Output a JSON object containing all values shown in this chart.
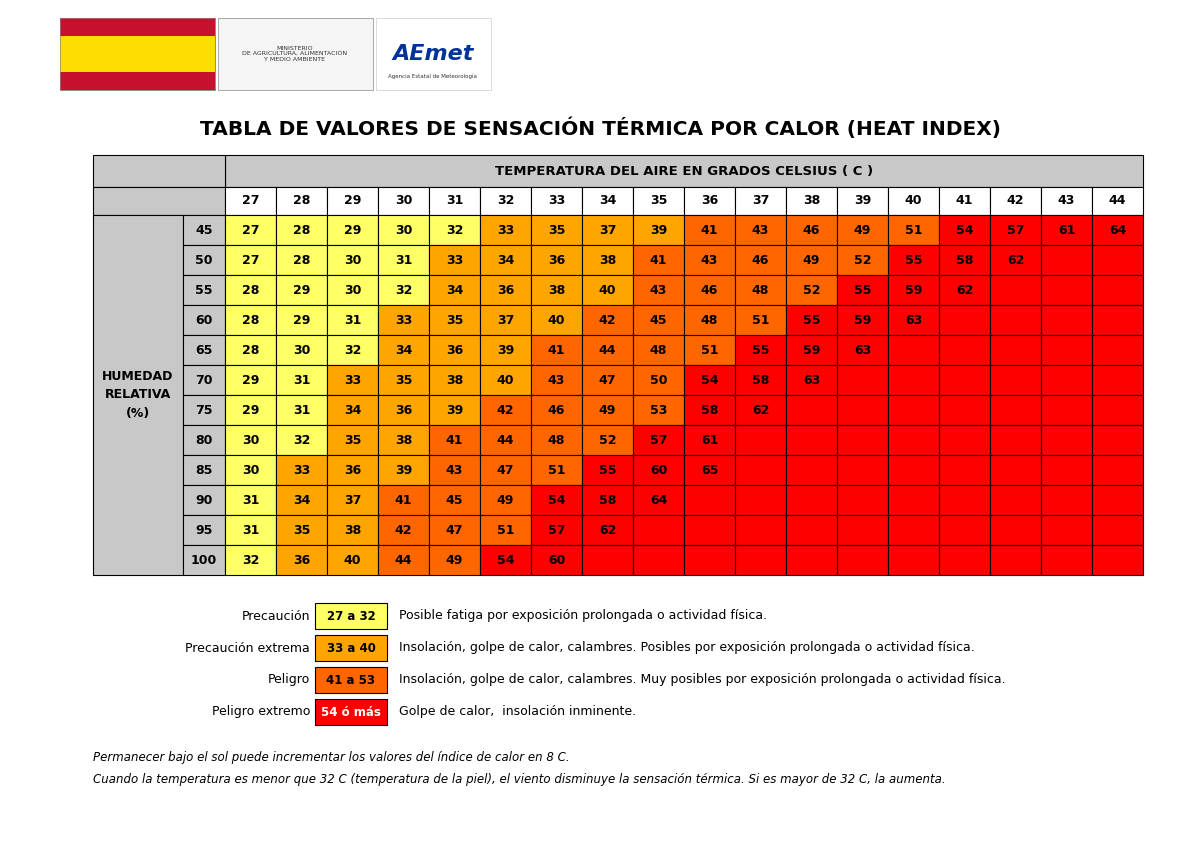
{
  "title": "TABLA DE VALORES DE SENSACIÓN TÉRMICA POR CALOR (HEAT INDEX)",
  "col_header": "TEMPERATURA DEL AIRE EN GRADOS CELSIUS ( C )",
  "row_header": "HUMEDAD\nRELATIVA\n(%)",
  "temperatures": [
    27,
    28,
    29,
    30,
    31,
    32,
    33,
    34,
    35,
    36,
    37,
    38,
    39,
    40,
    41,
    42,
    43,
    44
  ],
  "humidities": [
    45,
    50,
    55,
    60,
    65,
    70,
    75,
    80,
    85,
    90,
    95,
    100
  ],
  "table_data": [
    [
      27,
      28,
      29,
      30,
      32,
      33,
      35,
      37,
      39,
      41,
      43,
      46,
      49,
      51,
      54,
      57,
      61,
      64
    ],
    [
      27,
      28,
      30,
      31,
      33,
      34,
      36,
      38,
      41,
      43,
      46,
      49,
      52,
      55,
      58,
      62,
      null,
      null
    ],
    [
      28,
      29,
      30,
      32,
      34,
      36,
      38,
      40,
      43,
      46,
      48,
      52,
      55,
      59,
      62,
      null,
      null,
      null
    ],
    [
      28,
      29,
      31,
      33,
      35,
      37,
      40,
      42,
      45,
      48,
      51,
      55,
      59,
      63,
      null,
      null,
      null,
      null
    ],
    [
      28,
      30,
      32,
      34,
      36,
      39,
      41,
      44,
      48,
      51,
      55,
      59,
      63,
      null,
      null,
      null,
      null,
      null
    ],
    [
      29,
      31,
      33,
      35,
      38,
      40,
      43,
      47,
      50,
      54,
      58,
      63,
      null,
      null,
      null,
      null,
      null,
      null
    ],
    [
      29,
      31,
      34,
      36,
      39,
      42,
      46,
      49,
      53,
      58,
      62,
      null,
      null,
      null,
      null,
      null,
      null,
      null
    ],
    [
      30,
      32,
      35,
      38,
      41,
      44,
      48,
      52,
      57,
      61,
      null,
      null,
      null,
      null,
      null,
      null,
      null,
      null
    ],
    [
      30,
      33,
      36,
      39,
      43,
      47,
      51,
      55,
      60,
      65,
      null,
      null,
      null,
      null,
      null,
      null,
      null,
      null
    ],
    [
      31,
      34,
      37,
      41,
      45,
      49,
      54,
      58,
      64,
      null,
      null,
      null,
      null,
      null,
      null,
      null,
      null,
      null
    ],
    [
      31,
      35,
      38,
      42,
      47,
      51,
      57,
      62,
      null,
      null,
      null,
      null,
      null,
      null,
      null,
      null,
      null,
      null
    ],
    [
      32,
      36,
      40,
      44,
      49,
      54,
      60,
      null,
      null,
      null,
      null,
      null,
      null,
      null,
      null,
      null,
      null,
      null
    ]
  ],
  "bg_color": "#FFFFFF",
  "legend_items": [
    {
      "label": "Precaución",
      "range": "27 a 32",
      "color": "#FFFF66",
      "text_color": "#000000",
      "description": "Posible fatiga por exposición prolongada o actividad física."
    },
    {
      "label": "Precaución extrema",
      "range": "33 a 40",
      "color": "#FFA500",
      "text_color": "#000000",
      "description": "Insolación, golpe de calor, calambres. Posibles por exposición prolongada o actividad física."
    },
    {
      "label": "Peligro",
      "range": "41 a 53",
      "color": "#FF6600",
      "text_color": "#000000",
      "description": "Insolación, golpe de calor, calambres. Muy posibles por exposición prolongada o actividad física."
    },
    {
      "label": "Peligro extremo",
      "range": "54 ó más",
      "color": "#FF0000",
      "text_color": "#FFFFFF",
      "description": "Golpe de calor,  insolación inminente."
    }
  ],
  "footnotes": [
    "Permanecer bajo el sol puede incrementar los valores del índice de calor en 8 C.",
    "Cuando la temperatura es menor que 32 C (temperatura de la piel), el viento disminuye la sensación térmica. Si es mayor de 32 C, la aumenta."
  ]
}
